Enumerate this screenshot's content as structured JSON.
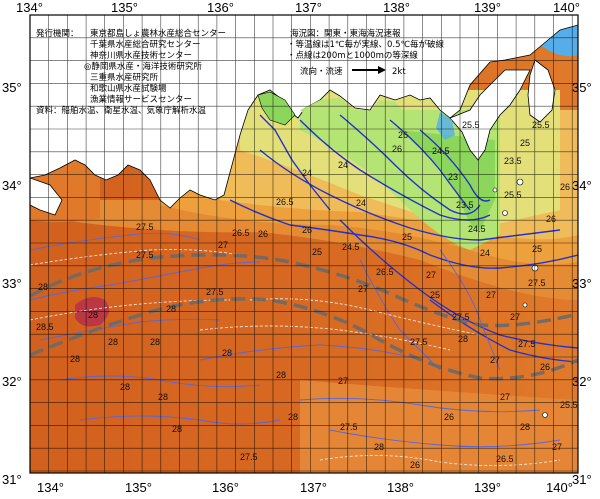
{
  "lon_labels": [
    "134°",
    "135°",
    "136°",
    "137°",
    "138°",
    "139°",
    "140°"
  ],
  "lat_labels": [
    "35°",
    "34°",
    "33°",
    "32°",
    "31°"
  ],
  "source_block": {
    "heading": "発行機関：",
    "agencies": [
      "東京都島しょ農林水産総合センター",
      "千葉県水産総合研究センター",
      "神奈川県水産技術センター",
      "◎静岡県水産・海洋技術研究所",
      "三重県水産研究所",
      "和歌山県水産試験場",
      "漁業情報サービスセンター"
    ],
    "data_source": "資料：船舶水温、衛星水温、気象庁解析水温"
  },
  "legend_block": {
    "title": "海況図：関東・東海海況速報",
    "note1": "・等温線は1℃毎が実線、0.5℃毎が破線",
    "note2": "・点線は200mと1000mの等深線",
    "arrow_label": "流向・流速",
    "arrow_unit": "2kt"
  },
  "contour_labels": [
    "28.5",
    "28",
    "26",
    "27.5",
    "27",
    "26.5",
    "26",
    "25",
    "24.5",
    "24",
    "23.5",
    "25.5",
    "26",
    "26.5",
    "27",
    "27.5",
    "28",
    "28",
    "28",
    "28",
    "27.5",
    "27",
    "27",
    "26",
    "25",
    "28",
    "27.5",
    "27.5",
    "27",
    "26",
    "25",
    "24",
    "28",
    "28",
    "28",
    "28",
    "28",
    "28",
    "27.5",
    "27.5",
    "26.5",
    "26",
    "25.5",
    "25",
    "24.5",
    "24",
    "23",
    "23.5",
    "24",
    "24.5",
    "25",
    "25.5",
    "26",
    "26",
    "27",
    "27.5",
    "28",
    "27.5",
    "28",
    "28",
    "27",
    "26.5",
    "26",
    "25.5",
    "27",
    "27"
  ],
  "colors": {
    "land": "#ffffff",
    "sst_28": "#d2601e",
    "sst_27": "#e07a2a",
    "sst_26": "#eda03c",
    "sst_25": "#f0bc5a",
    "sst_24": "#e3e07a",
    "sst_23": "#b4e474",
    "sst_22": "#8cd65c",
    "sst_29": "#b5304a",
    "water_cool": "#55aeea",
    "coast": "#000000",
    "isotherm": "#2233cc",
    "kuroshio": "#6a6a6a",
    "grid": "#000000"
  }
}
